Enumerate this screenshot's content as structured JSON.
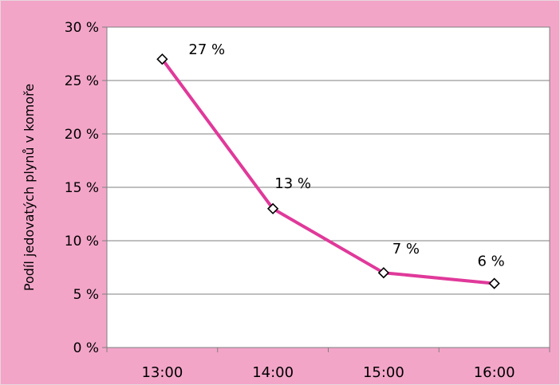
{
  "colors": {
    "background": "#f3a5c8",
    "plot_background": "#ffffff",
    "line": "#e0399a",
    "gridline": "#7f7f7f",
    "marker_fill": "#ffffff",
    "marker_stroke": "#000000"
  },
  "chart_data": {
    "type": "line",
    "categories": [
      "13:00",
      "14:00",
      "15:00",
      "16:00"
    ],
    "series": [
      {
        "values": [
          27,
          13,
          7,
          6
        ],
        "data_labels": [
          "27 %",
          "13 %",
          "7 %",
          "6 %"
        ]
      }
    ],
    "title": "",
    "xlabel": "",
    "ylabel": "Podíl jedovatých plynů v komoře",
    "ylim": [
      0,
      30
    ],
    "yticks": [
      0,
      5,
      10,
      15,
      20,
      25,
      30
    ],
    "ytick_labels": [
      "0 %",
      "5 %",
      "10 %",
      "15 %",
      "20 %",
      "25 %",
      "30 %"
    ],
    "grid": true,
    "legend": "none",
    "marker": "diamond-open"
  }
}
